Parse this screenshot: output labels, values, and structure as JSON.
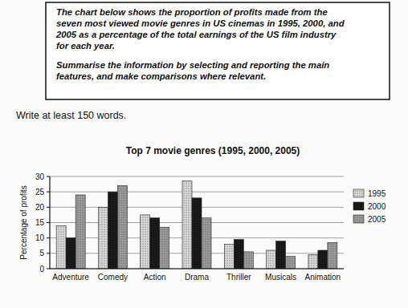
{
  "document": {
    "task": {
      "paragraphs": [
        [
          "The chart below shows the proportion of profits made from the",
          "seven most viewed movie genres in US cinemas in 1995, 2000, and",
          "2005 as a percentage of the total earnings of the US film industry",
          "for each year."
        ],
        [
          "Summarise the information by selecting and reporting the main",
          "features, and make comparisons where relevant."
        ]
      ]
    },
    "instruction": "Write at least 150 words."
  },
  "chart_data": {
    "type": "bar",
    "title": "Top 7 movie genres (1995, 2000, 2005)",
    "y_label": "Percentage of profits",
    "categories": [
      "Adventure",
      "Comedy",
      "Action",
      "Drama",
      "Thriller",
      "Musicals",
      "Animation"
    ],
    "series": [
      {
        "name": "1995",
        "color": "#d9d9d9",
        "values": [
          14,
          20,
          17.5,
          28.5,
          8,
          6,
          4.5
        ]
      },
      {
        "name": "2000",
        "color": "#151515",
        "values": [
          10,
          25,
          16.5,
          23,
          9.5,
          9,
          6
        ]
      },
      {
        "name": "2005",
        "color": "#9c9c9c",
        "values": [
          24,
          27,
          13.5,
          16.5,
          5.5,
          4,
          8.5
        ]
      }
    ],
    "ylim": [
      0,
      30
    ],
    "yticks": [
      0,
      5,
      10,
      15,
      20,
      25,
      30
    ],
    "grid": true,
    "legend": "right"
  }
}
